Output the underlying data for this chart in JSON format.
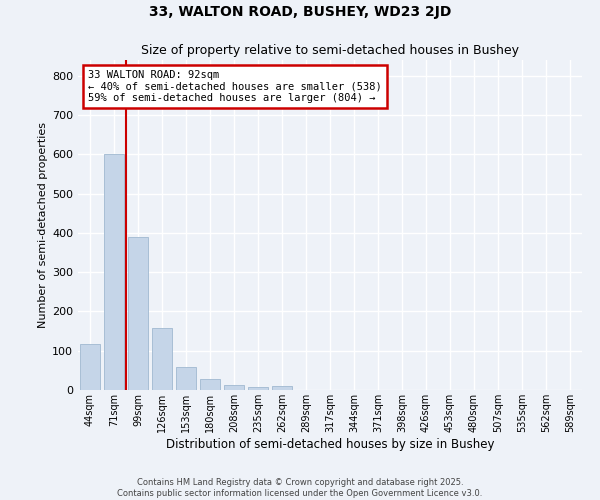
{
  "title": "33, WALTON ROAD, BUSHEY, WD23 2JD",
  "subtitle": "Size of property relative to semi-detached houses in Bushey",
  "xlabel": "Distribution of semi-detached houses by size in Bushey",
  "ylabel": "Number of semi-detached properties",
  "categories": [
    "44sqm",
    "71sqm",
    "99sqm",
    "126sqm",
    "153sqm",
    "180sqm",
    "208sqm",
    "235sqm",
    "262sqm",
    "289sqm",
    "317sqm",
    "344sqm",
    "371sqm",
    "398sqm",
    "426sqm",
    "453sqm",
    "480sqm",
    "507sqm",
    "535sqm",
    "562sqm",
    "589sqm"
  ],
  "values": [
    118,
    600,
    390,
    158,
    58,
    28,
    14,
    7,
    10,
    0,
    0,
    0,
    0,
    0,
    0,
    0,
    0,
    0,
    0,
    0,
    0
  ],
  "bar_color": "#c5d5e8",
  "bar_edge_color": "#a0b8d0",
  "ylim": [
    0,
    840
  ],
  "yticks": [
    0,
    100,
    200,
    300,
    400,
    500,
    600,
    700,
    800
  ],
  "vline_x": 1.5,
  "vline_color": "#cc0000",
  "annotation_text": "33 WALTON ROAD: 92sqm\n← 40% of semi-detached houses are smaller (538)\n59% of semi-detached houses are larger (804) →",
  "annotation_box_color": "#cc0000",
  "footer_line1": "Contains HM Land Registry data © Crown copyright and database right 2025.",
  "footer_line2": "Contains public sector information licensed under the Open Government Licence v3.0.",
  "background_color": "#eef2f8",
  "grid_color": "#ffffff",
  "title_fontsize": 10,
  "subtitle_fontsize": 9
}
